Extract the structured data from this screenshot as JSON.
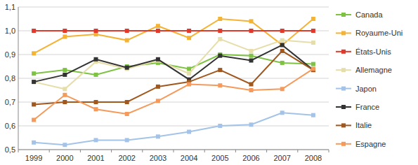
{
  "chart_data": {
    "type": "line",
    "categories": [
      "1999",
      "2000",
      "2001",
      "2002",
      "2003",
      "2004",
      "2005",
      "2006",
      "2007",
      "2008"
    ],
    "ylim": [
      0.5,
      1.1
    ],
    "yticks": [
      {
        "value": 0.5,
        "label": "0,5"
      },
      {
        "value": 0.6,
        "label": "0,6"
      },
      {
        "value": 0.7,
        "label": "0,7"
      },
      {
        "value": 0.8,
        "label": "0,8"
      },
      {
        "value": 0.9,
        "label": "0,9"
      },
      {
        "value": 1.0,
        "label": "1,0"
      },
      {
        "value": 1.1,
        "label": "1,1"
      }
    ],
    "grid": true,
    "legend": "right",
    "marker": "square",
    "series": [
      {
        "name": "Canada",
        "color": "#7dc242",
        "values": [
          0.82,
          0.835,
          0.815,
          0.85,
          0.865,
          0.84,
          0.9,
          0.895,
          0.865,
          0.86
        ]
      },
      {
        "name": "Royaume-Uni",
        "color": "#f5b335",
        "values": [
          0.905,
          0.975,
          0.985,
          0.96,
          1.02,
          0.97,
          1.05,
          1.04,
          0.94,
          1.05
        ]
      },
      {
        "name": "États-Unis",
        "color": "#e03a2c",
        "values": [
          1.0,
          1.0,
          1.0,
          1.0,
          1.0,
          1.0,
          1.0,
          1.0,
          1.0,
          1.0
        ]
      },
      {
        "name": "Allemagne",
        "color": "#e6deaa",
        "values": [
          0.785,
          0.755,
          0.87,
          0.84,
          0.875,
          0.82,
          0.965,
          0.915,
          0.96,
          0.95
        ]
      },
      {
        "name": "Japon",
        "color": "#a3c3e8",
        "values": [
          0.53,
          0.52,
          0.54,
          0.54,
          0.555,
          0.575,
          0.6,
          0.605,
          0.655,
          0.645
        ]
      },
      {
        "name": "France",
        "color": "#333333",
        "values": [
          0.785,
          0.815,
          0.88,
          0.845,
          0.88,
          0.795,
          0.895,
          0.875,
          0.94,
          0.835
        ]
      },
      {
        "name": "Italie",
        "color": "#a0581e",
        "values": [
          0.69,
          0.7,
          0.7,
          0.7,
          0.765,
          0.785,
          0.835,
          0.775,
          0.915,
          0.835
        ]
      },
      {
        "name": "Espagne",
        "color": "#f59a5b",
        "values": [
          0.625,
          0.73,
          0.67,
          0.65,
          0.705,
          0.775,
          0.77,
          0.75,
          0.755,
          0.84
        ]
      }
    ]
  }
}
